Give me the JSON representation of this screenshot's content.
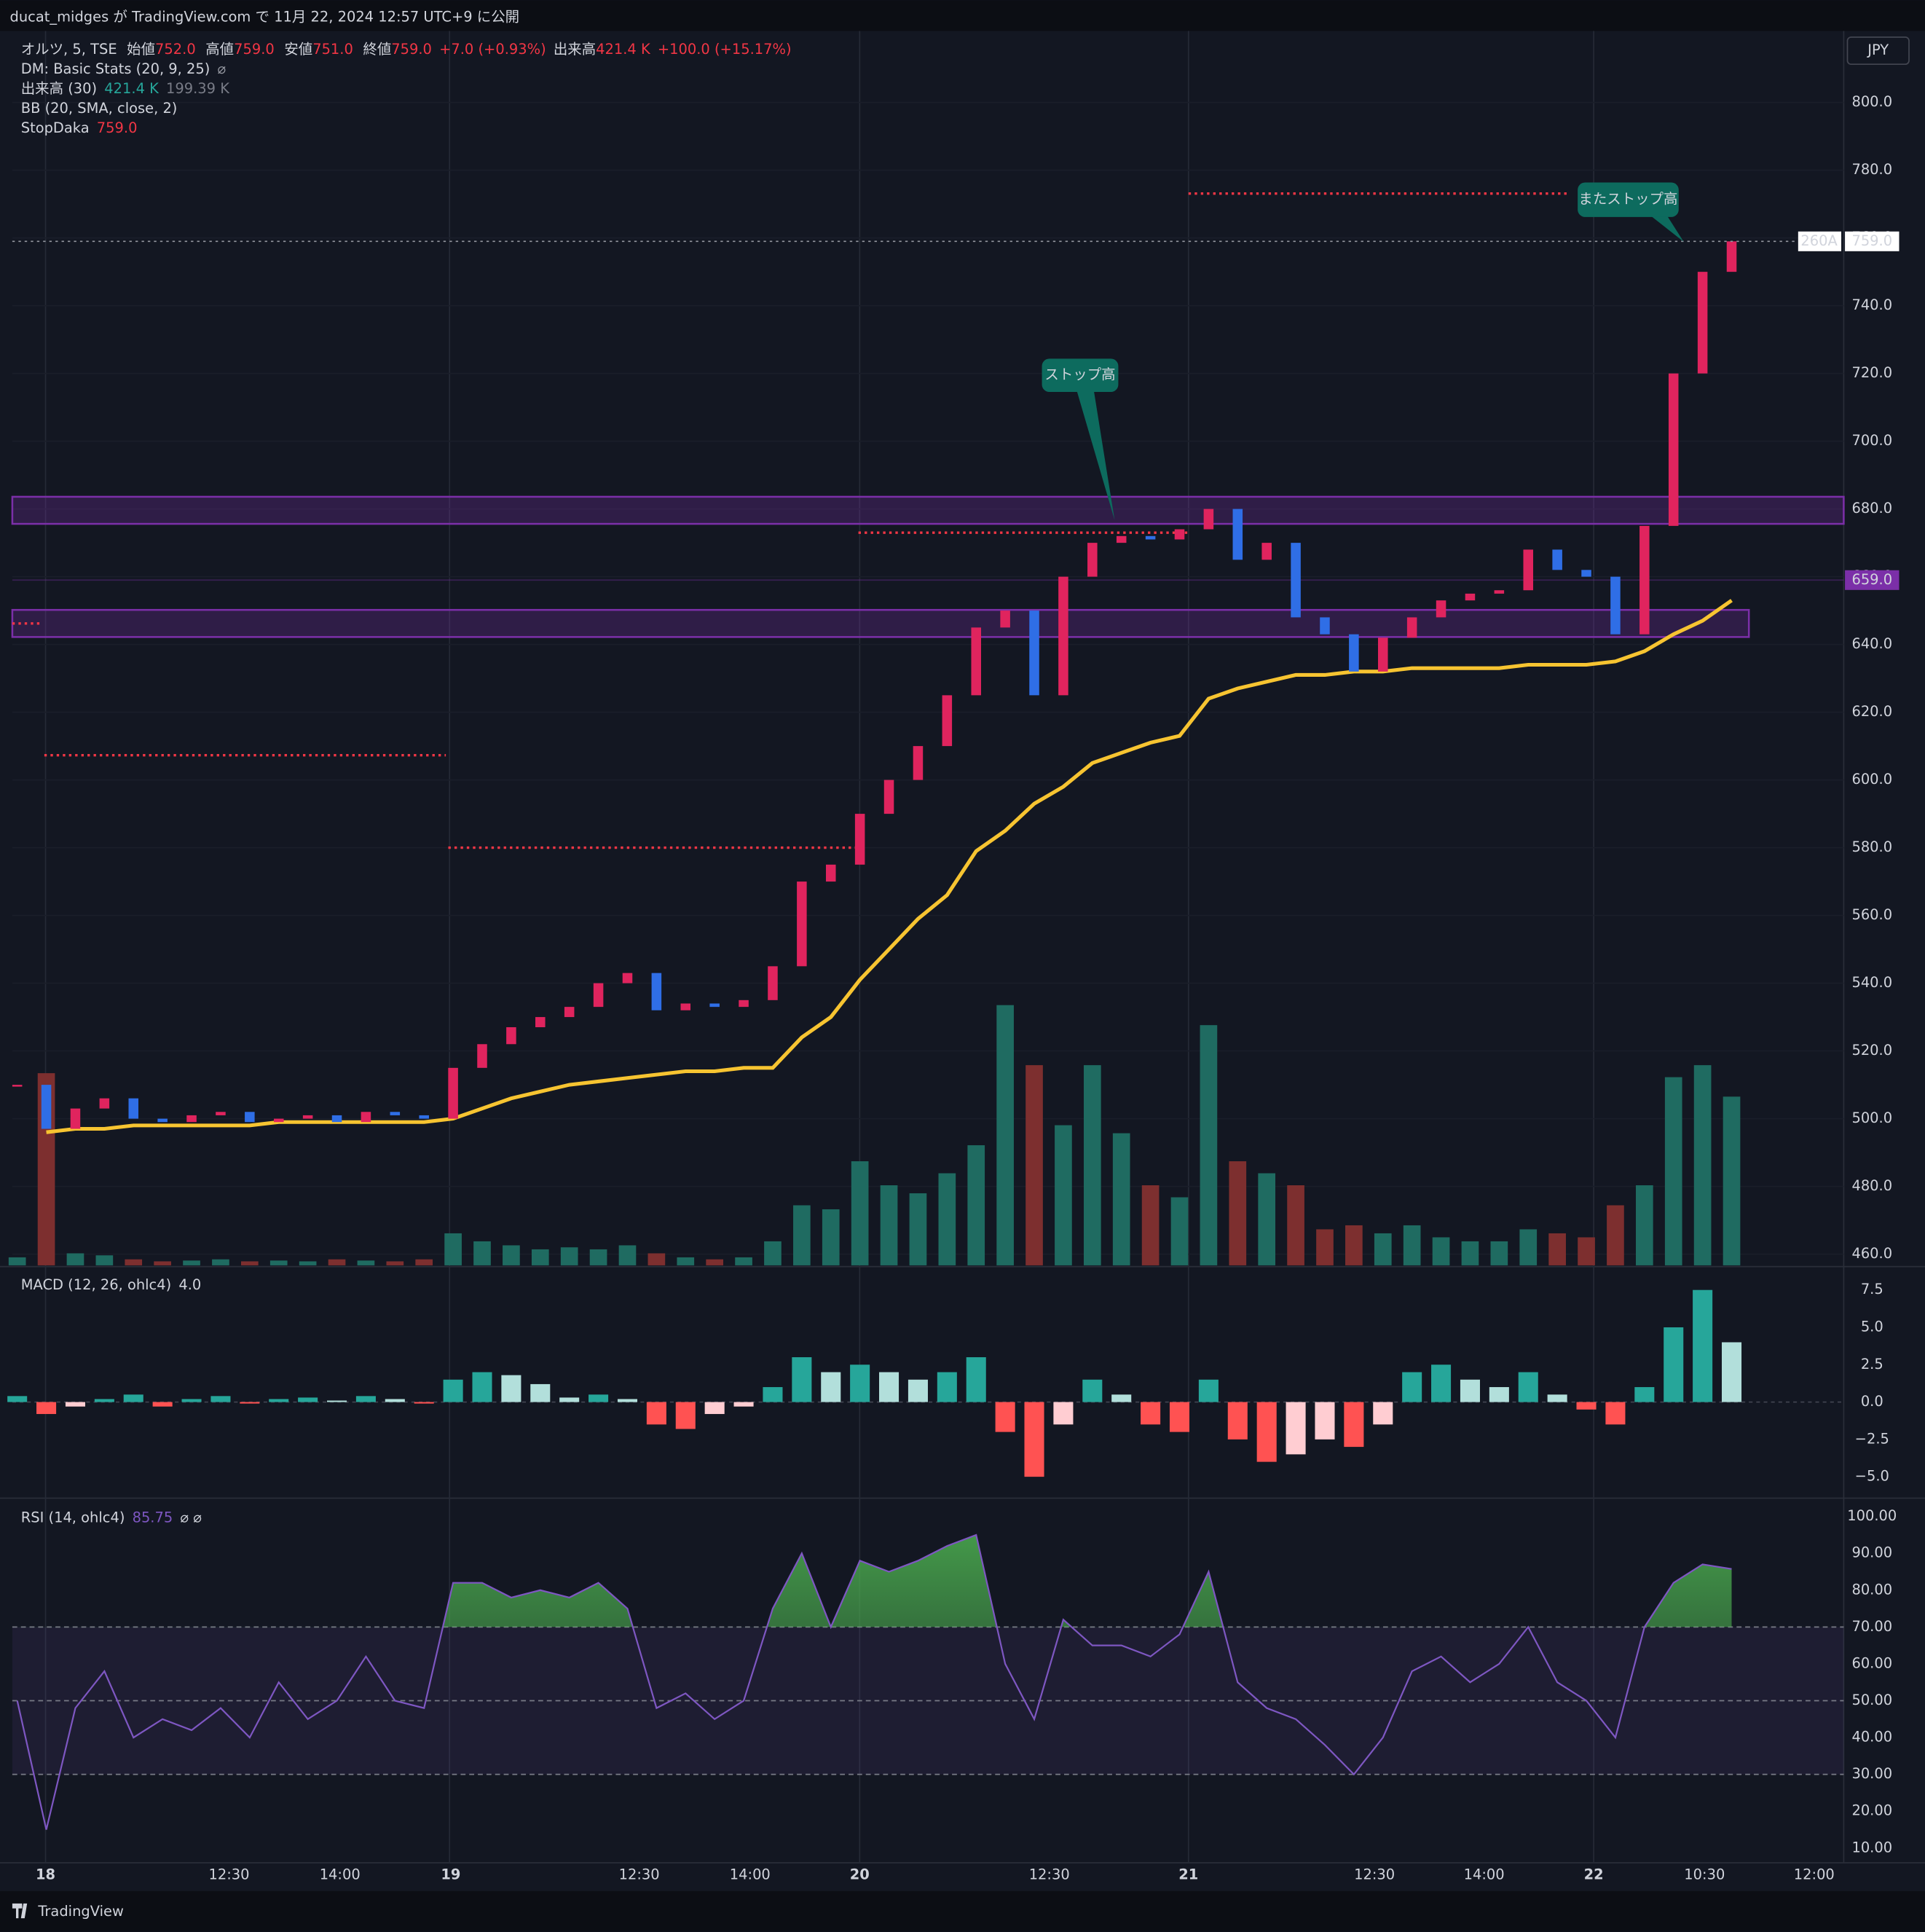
{
  "header": "ducat_midges が TradingView.com で 11月 22, 2024 12:57 UTC+9 に公開",
  "legend": {
    "symbol": "オルツ, 5, TSE",
    "ohlc": [
      {
        "label": "始値",
        "value": "752.0"
      },
      {
        "label": "高値",
        "value": "759.0"
      },
      {
        "label": "安値",
        "value": "751.0"
      },
      {
        "label": "終値",
        "value": "759.0"
      }
    ],
    "change": "+7.0 (+0.93%)",
    "volume_label": "出来高",
    "volume_value": "421.4 K",
    "change2": "+100.0 (+15.17%)",
    "indicators": [
      {
        "name": "DM: Basic Stats (20, 9, 25)",
        "values": [
          "⌀"
        ]
      },
      {
        "name": "出来高 (30)",
        "values": [
          "421.4 K",
          "199.39 K"
        ]
      },
      {
        "name": "BB (20, SMA, close, 2)",
        "values": []
      },
      {
        "name": "StopDaka",
        "values": [
          "759.0"
        ]
      }
    ]
  },
  "currency": "JPY",
  "time_labels": [
    "18",
    "12:30",
    "14:00",
    "19",
    "12:30",
    "14:00",
    "20",
    "12:30",
    "21",
    "12:30",
    "14:00",
    "22",
    "10:30",
    "12:00"
  ],
  "footer": "TradingView",
  "chart_data": [
    {
      "type": "candlestick",
      "color_up": "#e0245e",
      "color_down": "#2f6ee6",
      "closes": [
        510,
        497,
        503,
        506,
        500,
        499,
        501,
        502,
        499,
        500,
        501,
        499,
        502,
        501,
        500,
        515,
        522,
        527,
        530,
        533,
        540,
        543,
        532,
        534,
        533,
        535,
        545,
        570,
        575,
        590,
        600,
        610,
        625,
        645,
        650,
        625,
        660,
        670,
        672,
        671,
        674,
        680,
        665,
        670,
        648,
        643,
        632,
        642,
        648,
        653,
        655,
        656,
        668,
        662,
        660,
        643,
        675,
        720,
        750,
        759
      ],
      "stop_line": {
        "color": "#f7c431",
        "values": [
          null,
          496,
          497,
          497,
          498,
          498,
          498,
          498,
          498,
          499,
          499,
          499,
          499,
          499,
          499,
          500,
          503,
          506,
          508,
          510,
          511,
          512,
          513,
          514,
          514,
          515,
          515,
          524,
          530,
          541,
          550,
          559,
          566,
          579,
          585,
          593,
          598,
          605,
          608,
          611,
          613,
          624,
          627,
          629,
          631,
          631,
          632,
          632,
          633,
          633,
          633,
          633,
          634,
          634,
          634,
          635,
          638,
          643,
          647,
          653
        ]
      },
      "volume": {
        "color_up": "#1f6b61",
        "color_down": "#7d2f2f",
        "values": [
          20,
          480,
          30,
          25,
          15,
          10,
          12,
          15,
          10,
          12,
          10,
          15,
          12,
          10,
          15,
          80,
          60,
          50,
          40,
          45,
          40,
          50,
          30,
          20,
          15,
          20,
          60,
          150,
          140,
          260,
          200,
          180,
          230,
          300,
          650,
          500,
          350,
          500,
          330,
          200,
          170,
          600,
          260,
          230,
          200,
          90,
          100,
          80,
          100,
          70,
          60,
          60,
          90,
          80,
          70,
          150,
          200,
          470,
          500,
          421.4
        ]
      },
      "ylim": [
        456.7,
        821.1
      ],
      "yticks": [
        {
          "value": 800,
          "label": "800.0"
        },
        {
          "value": 780,
          "label": "780.0"
        },
        {
          "value": 760,
          "label": "760.0"
        },
        {
          "value": 740,
          "label": "740.0"
        },
        {
          "value": 720,
          "label": "720.0"
        },
        {
          "value": 700,
          "label": "700.0"
        },
        {
          "value": 680,
          "label": "680.0"
        },
        {
          "value": 660,
          "label": "660.0"
        },
        {
          "value": 640,
          "label": "640.0"
        },
        {
          "value": 620,
          "label": "620.0"
        },
        {
          "value": 600,
          "label": "600.0"
        },
        {
          "value": 580,
          "label": "580.0"
        },
        {
          "value": 560,
          "label": "560.0"
        },
        {
          "value": 540,
          "label": "540.0"
        },
        {
          "value": 520,
          "label": "520.0"
        },
        {
          "value": 500,
          "label": "500.0"
        },
        {
          "value": 480,
          "label": "480.0"
        },
        {
          "value": 460,
          "label": "460.0"
        }
      ],
      "zones": [
        [
          675.6,
          683.6
        ],
        [
          642.2,
          650.2
        ]
      ],
      "zone_color": "#7b2fa8",
      "levels": [
        773.1,
        673,
        607.3,
        580,
        646.2
      ],
      "level_color": "#f23645",
      "last_price": {
        "value": 759,
        "label": "759.0",
        "badge": "260A"
      },
      "level_tag": {
        "value": 659,
        "label": "659.0"
      },
      "annotations": [
        "ストップ高",
        "またストップ高"
      ]
    },
    {
      "type": "histogram",
      "title": "MACD (12, 26, ohlc4)",
      "last": "4.0",
      "values": [
        0.4,
        -0.8,
        -0.3,
        0.2,
        0.5,
        -0.3,
        0.2,
        0.4,
        -0.1,
        0.2,
        0.3,
        0.1,
        0.4,
        0.2,
        -0.1,
        1.5,
        2.0,
        1.8,
        1.2,
        0.3,
        0.5,
        0.2,
        -1.5,
        -1.8,
        -0.8,
        -0.3,
        1.0,
        3.0,
        2.0,
        2.5,
        2.0,
        1.5,
        2.0,
        3.0,
        -2.0,
        -5.0,
        -1.5,
        1.5,
        0.5,
        -1.5,
        -2.0,
        1.5,
        -2.5,
        -4.0,
        -3.5,
        -2.5,
        -3.0,
        -1.5,
        2.0,
        2.5,
        1.5,
        1.0,
        2.0,
        0.5,
        -0.5,
        -1.5,
        1.0,
        5.0,
        7.5,
        4.0
      ],
      "colors": [
        "#26a69a",
        "#b2dfdb",
        "#ff5252",
        "#ffcdd2"
      ],
      "ylim": [
        -6.35,
        8.9
      ],
      "yticks": [
        7.5,
        {
          "value": 5,
          "label": "5.0"
        },
        2.5,
        {
          "value": 0,
          "label": "0.0"
        },
        {
          "value": -2.5,
          "label": "−2.5"
        },
        {
          "value": -5,
          "label": "−5.0"
        }
      ]
    },
    {
      "type": "line",
      "title": "RSI (14, ohlc4)",
      "last": "85.75",
      "extra": "⌀ ⌀",
      "color": "#7e57c2",
      "values": [
        50,
        15,
        48,
        58,
        40,
        45,
        42,
        48,
        40,
        55,
        45,
        50,
        62,
        50,
        48,
        82,
        82,
        78,
        80,
        78,
        82,
        75,
        48,
        52,
        45,
        50,
        75,
        90,
        70,
        88,
        85,
        88,
        92,
        95,
        60,
        45,
        72,
        65,
        65,
        62,
        68,
        85,
        55,
        48,
        45,
        38,
        30,
        40,
        58,
        62,
        55,
        60,
        70,
        55,
        50,
        40,
        70,
        82,
        87,
        85.75
      ],
      "levels": [
        70,
        50,
        30
      ],
      "ylim": [
        6.0,
        104.3
      ],
      "yticks": [
        {
          "value": 100,
          "label": "100.00"
        },
        {
          "value": 90,
          "label": "90.00"
        },
        {
          "value": 80,
          "label": "80.00"
        },
        {
          "value": 70,
          "label": "70.00"
        },
        {
          "value": 60,
          "label": "60.00"
        },
        {
          "value": 50,
          "label": "50.00"
        },
        {
          "value": 40,
          "label": "40.00"
        },
        {
          "value": 30,
          "label": "30.00"
        },
        {
          "value": 20,
          "label": "20.00"
        },
        {
          "value": 10,
          "label": "10.00"
        }
      ]
    }
  ]
}
